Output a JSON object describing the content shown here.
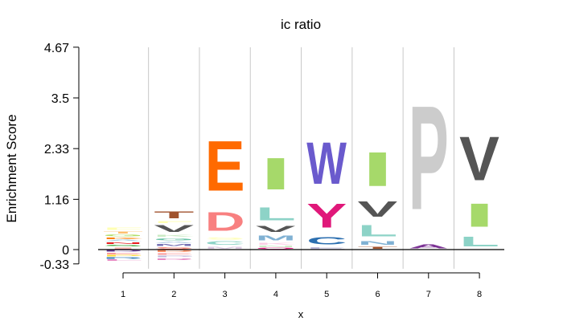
{
  "chart_data": {
    "type": "sequence-logo",
    "title": "ic ratio",
    "xlabel": "x",
    "ylabel": "Enrichment Score",
    "ylim": [
      -0.33,
      4.67
    ],
    "y_ticks": [
      "4.67",
      "3.5",
      "2.33",
      "1.16",
      "0",
      "-0.33"
    ],
    "x_ticks": [
      "1",
      "2",
      "3",
      "4",
      "5",
      "6",
      "7",
      "8"
    ],
    "grid": "vertical",
    "positions": [
      {
        "x": 1,
        "stack": [
          {
            "letter": "I",
            "y0": 0.0,
            "y1": 0.06,
            "color": "#fbb4ae"
          },
          {
            "letter": "S",
            "y0": 0.06,
            "y1": 0.12,
            "color": "#4daf4a"
          },
          {
            "letter": "N",
            "y0": 0.12,
            "y1": 0.18,
            "color": "#e41a1c"
          },
          {
            "letter": "A",
            "y0": 0.18,
            "y1": 0.23,
            "color": "#a6cee3"
          },
          {
            "letter": "K",
            "y0": 0.23,
            "y1": 0.29,
            "color": "#ff7f00"
          },
          {
            "letter": "G",
            "y0": 0.29,
            "y1": 0.36,
            "color": "#b3de69"
          },
          {
            "letter": "T",
            "y0": 0.36,
            "y1": 0.43,
            "color": "#fdbf6f"
          },
          {
            "letter": "F",
            "y0": 0.43,
            "y1": 0.53,
            "color": "#ffffb3"
          },
          {
            "letter": "D",
            "y0": -0.06,
            "y1": 0.0,
            "color": "#6a3d9a"
          },
          {
            "letter": "E",
            "y0": -0.12,
            "y1": -0.06,
            "color": "#fb9a99"
          },
          {
            "letter": "P",
            "y0": -0.17,
            "y1": -0.12,
            "color": "#ffd92f"
          },
          {
            "letter": "R",
            "y0": -0.22,
            "y1": -0.17,
            "color": "#377eb8"
          },
          {
            "letter": "L",
            "y0": -0.27,
            "y1": -0.22,
            "color": "#e78ac3"
          }
        ]
      },
      {
        "x": 2,
        "stack": [
          {
            "letter": "S",
            "y0": 0.0,
            "y1": 0.07,
            "color": "#fb8072"
          },
          {
            "letter": "M",
            "y0": 0.07,
            "y1": 0.14,
            "color": "#7570b3"
          },
          {
            "letter": "A",
            "y0": 0.14,
            "y1": 0.2,
            "color": "#b3cde3"
          },
          {
            "letter": "G",
            "y0": 0.2,
            "y1": 0.28,
            "color": "#66c2a5"
          },
          {
            "letter": "K",
            "y0": 0.28,
            "y1": 0.36,
            "color": "#ccebc5"
          },
          {
            "letter": "V",
            "y0": 0.36,
            "y1": 0.6,
            "color": "#555555"
          },
          {
            "letter": "F",
            "y0": 0.6,
            "y1": 0.67,
            "color": "#ffffb3"
          },
          {
            "letter": "T",
            "y0": 0.67,
            "y1": 0.92,
            "color": "#a0522d"
          },
          {
            "letter": "D",
            "y0": -0.07,
            "y1": 0.0,
            "color": "#fc8d62"
          },
          {
            "letter": "E",
            "y0": -0.13,
            "y1": -0.07,
            "color": "#fb9a99"
          },
          {
            "letter": "P",
            "y0": -0.19,
            "y1": -0.13,
            "color": "#bebada"
          },
          {
            "letter": "R",
            "y0": -0.25,
            "y1": -0.19,
            "color": "#e78ac3"
          }
        ]
      },
      {
        "x": 3,
        "stack": [
          {
            "letter": "M",
            "y0": 0.0,
            "y1": 0.08,
            "color": "#decbe4"
          },
          {
            "letter": "C",
            "y0": 0.08,
            "y1": 0.22,
            "color": "#8dd3c7"
          },
          {
            "letter": "S",
            "y0": 0.22,
            "y1": 0.3,
            "color": "#ffffb3"
          },
          {
            "letter": "D",
            "y0": 0.3,
            "y1": 1.0,
            "color": "#f88080"
          },
          {
            "letter": "E",
            "y0": 1.0,
            "y1": 2.85,
            "color": "#ff6a00"
          }
        ]
      },
      {
        "x": 4,
        "stack": [
          {
            "letter": "Q",
            "y0": 0.0,
            "y1": 0.05,
            "color": "#e7298a"
          },
          {
            "letter": "N",
            "y0": 0.05,
            "y1": 0.1,
            "color": "#ccebc5"
          },
          {
            "letter": "K",
            "y0": 0.1,
            "y1": 0.18,
            "color": "#fccde5"
          },
          {
            "letter": "M",
            "y0": 0.18,
            "y1": 0.36,
            "color": "#80b1d3"
          },
          {
            "letter": "V",
            "y0": 0.36,
            "y1": 0.58,
            "color": "#555555"
          },
          {
            "letter": "L",
            "y0": 0.58,
            "y1": 1.05,
            "color": "#8dd3c7"
          },
          {
            "letter": "I",
            "y0": 1.16,
            "y1": 2.33,
            "color": "#a6d96a"
          }
        ]
      },
      {
        "x": 5,
        "stack": [
          {
            "letter": "E",
            "y0": 0.0,
            "y1": 0.07,
            "color": "#bebada"
          },
          {
            "letter": "C",
            "y0": 0.07,
            "y1": 0.34,
            "color": "#2c6fb0"
          },
          {
            "letter": "Y",
            "y0": 0.34,
            "y1": 1.22,
            "color": "#e0187a"
          },
          {
            "letter": "W",
            "y0": 1.22,
            "y1": 2.75,
            "color": "#6a5acd"
          }
        ]
      },
      {
        "x": 6,
        "stack": [
          {
            "letter": "T",
            "y0": 0.0,
            "y1": 0.08,
            "color": "#a0522d"
          },
          {
            "letter": "N",
            "y0": 0.08,
            "y1": 0.22,
            "color": "#80b1d3"
          },
          {
            "letter": "L",
            "y0": 0.22,
            "y1": 0.65,
            "color": "#8dd3c7"
          },
          {
            "letter": "V",
            "y0": 0.65,
            "y1": 1.22,
            "color": "#555555"
          },
          {
            "letter": "I",
            "y0": 1.22,
            "y1": 2.48,
            "color": "#a6d96a"
          }
        ]
      },
      {
        "x": 7,
        "stack": [
          {
            "letter": "A",
            "y0": 0.0,
            "y1": 0.15,
            "color": "#7b3294"
          },
          {
            "letter": "P",
            "y0": 0.18,
            "y1": 4.02,
            "color": "#cccccc"
          }
        ]
      },
      {
        "x": 8,
        "stack": [
          {
            "letter": "L",
            "y0": 0.0,
            "y1": 0.36,
            "color": "#8dd3c7"
          },
          {
            "letter": "I",
            "y0": 0.36,
            "y1": 1.22,
            "color": "#a6d96a"
          },
          {
            "letter": "V",
            "y0": 1.28,
            "y1": 2.9,
            "color": "#555555"
          }
        ]
      }
    ]
  }
}
